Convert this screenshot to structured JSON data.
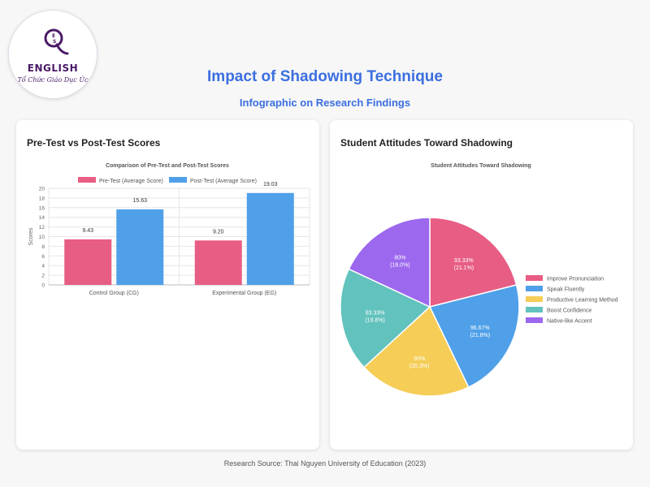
{
  "brand": {
    "logo_icon": "q-es-monogram",
    "name": "ENGLISH",
    "tagline": "Tổ Chức Giáo Dục Úc"
  },
  "header": {
    "title": "Impact of Shadowing Technique",
    "subtitle": "Infographic on Research Findings"
  },
  "cards": {
    "left_title": "Pre-Test vs Post-Test Scores",
    "right_title": "Student Attitudes Toward Shadowing"
  },
  "footer": {
    "source": "Research Source: Thai Nguyen University of Education (2023)"
  },
  "chart_data": [
    {
      "type": "bar",
      "title": "Comparison of Pre-Test and Post-Test Scores",
      "xlabel": "",
      "ylabel": "Scores",
      "categories": [
        "Control Group (CG)",
        "Experimental Group (EG)"
      ],
      "series": [
        {
          "name": "Pre-Test (Average Score)",
          "values": [
            9.43,
            9.2
          ],
          "labels": [
            "9.43",
            "9.20"
          ],
          "color": "#e85d84"
        },
        {
          "name": "Post-Test (Average Score)",
          "values": [
            15.63,
            19.03
          ],
          "labels": [
            "15.63",
            "19.03"
          ],
          "color": "#4fa0e8"
        }
      ],
      "ylim": [
        0,
        20
      ],
      "yticks": [
        "0",
        "2",
        "4",
        "6",
        "8",
        "10",
        "12",
        "14",
        "16",
        "18",
        "20"
      ],
      "grid": true,
      "legend": "top"
    },
    {
      "type": "pie",
      "title": "Student Attitudes Toward Shadowing",
      "slices": [
        {
          "name": "Improve Pronunciation",
          "value": 93.33,
          "label": "93.33%",
          "share": "(21.1%)",
          "color": "#e85d84"
        },
        {
          "name": "Speak Fluently",
          "value": 96.67,
          "label": "96.67%",
          "share": "(21.8%)",
          "color": "#4fa0e8"
        },
        {
          "name": "Productive Learning Method",
          "value": 90,
          "label": "90%",
          "share": "(20.3%)",
          "color": "#f5cd57"
        },
        {
          "name": "Boost Confidence",
          "value": 83.33,
          "label": "83.33%",
          "share": "(18.8%)",
          "color": "#62c2bd"
        },
        {
          "name": "Native-like Accent",
          "value": 80,
          "label": "80%",
          "share": "(18.0%)",
          "color": "#9b68ee"
        }
      ],
      "legend": "right"
    }
  ]
}
